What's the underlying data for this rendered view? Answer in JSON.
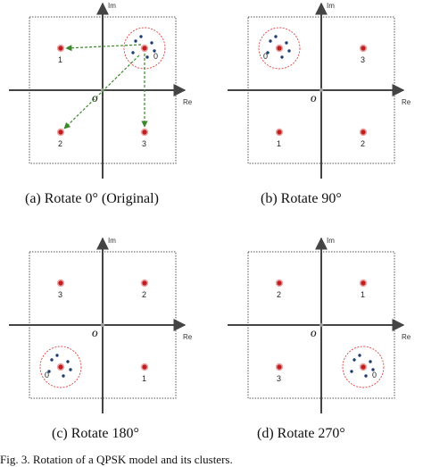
{
  "colors": {
    "point_fill": "#c01e1e",
    "point_halo": "#e9a6a6",
    "small_dot": "#1f3f73",
    "circle_dash": "#e04040",
    "arrow": "#3a8a2a",
    "axis": "#444444",
    "box_dash": "#555555"
  },
  "axis_labels": {
    "imag": "Im",
    "real": "Re",
    "origin": "O"
  },
  "panels": [
    {
      "caption": "(a)  Rotate 0°  (Original)",
      "labels": [
        "0",
        "1",
        "2",
        "3"
      ],
      "highlight_quadrant": "Q1",
      "arrows": true
    },
    {
      "caption": "(b)  Rotate 90°",
      "labels": [
        "3",
        "0",
        "1",
        "2"
      ],
      "highlight_quadrant": "Q2",
      "arrows": false
    },
    {
      "caption": "(c)  Rotate 180°",
      "labels": [
        "2",
        "3",
        "0",
        "1"
      ],
      "highlight_quadrant": "Q3",
      "arrows": false
    },
    {
      "caption": "(d)  Rotate 270°",
      "labels": [
        "1",
        "2",
        "3",
        "0"
      ],
      "highlight_quadrant": "Q4",
      "arrows": false
    }
  ],
  "bottom_caption": "Fig. 3.   Rotation of a QPSK model and its clusters."
}
